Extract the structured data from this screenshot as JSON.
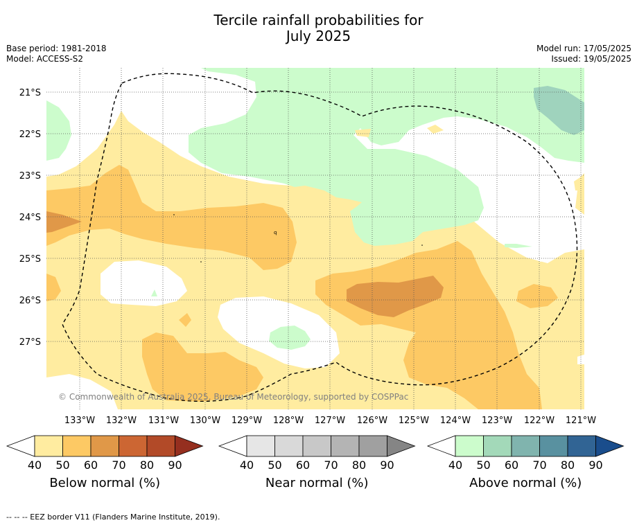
{
  "title_line1": "Tercile rainfall probabilities for",
  "title_line2": "July 2025",
  "meta": {
    "base_period": "Base period: 1981-2018",
    "model": "Model: ACCESS-S2",
    "model_run": "Model run: 17/05/2025",
    "issued": "Issued: 19/05/2025"
  },
  "copyright": "© Commonwealth of Australia 2025, Bureau of Meteorology, supported by COSPPac",
  "lat_labels": [
    "21°S",
    "22°S",
    "23°S",
    "24°S",
    "25°S",
    "26°S",
    "27°S"
  ],
  "lon_labels": [
    "133°W",
    "132°W",
    "131°W",
    "130°W",
    "129°W",
    "128°W",
    "127°W",
    "126°W",
    "125°W",
    "124°W",
    "123°W",
    "122°W",
    "121°W"
  ],
  "colorbars": [
    {
      "caption": "Below normal (%)",
      "ticks": [
        "40",
        "50",
        "60",
        "70",
        "80",
        "90"
      ],
      "colors": [
        "#ffeca0",
        "#fdc964",
        "#e09848",
        "#cc6633",
        "#b24a28",
        "#952f1f"
      ]
    },
    {
      "caption": "Near normal (%)",
      "ticks": [
        "40",
        "50",
        "60",
        "70",
        "80",
        "90"
      ],
      "colors": [
        "#e6e6e6",
        "#d9d9d9",
        "#c8c8c8",
        "#b4b4b4",
        "#a0a0a0",
        "#858585"
      ]
    },
    {
      "caption": "Above normal (%)",
      "ticks": [
        "40",
        "50",
        "60",
        "70",
        "80",
        "90"
      ],
      "colors": [
        "#ccfccc",
        "#a3d9b9",
        "#80b4ae",
        "#5991a0",
        "#316494",
        "#1a4d8c"
      ]
    }
  ],
  "footnote": "--  --  -- EEZ border V11 (Flanders Marine Institute, 2019).",
  "map_colors": {
    "below_40": "#ffeca0",
    "below_50": "#fdc964",
    "below_60": "#e09848",
    "above_40": "#ccfccc",
    "above_60": "#9fd3bd"
  }
}
